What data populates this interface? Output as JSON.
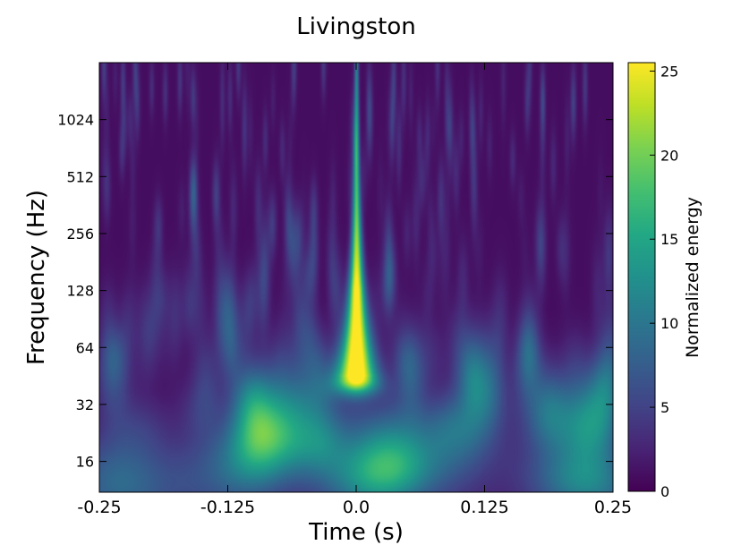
{
  "chart_data": {
    "type": "heatmap",
    "title": "Livingston",
    "xlabel": "Time (s)",
    "ylabel": "Frequency (Hz)",
    "xlim": [
      -0.25,
      0.25
    ],
    "ylim": [
      11,
      2048
    ],
    "yscale": "log2",
    "x_ticks": [
      -0.25,
      -0.125,
      0.0,
      0.125,
      0.25
    ],
    "x_tick_labels": [
      "-0.25",
      "-0.125",
      "0.0",
      "0.125",
      "0.25"
    ],
    "y_ticks": [
      16,
      32,
      64,
      128,
      256,
      512,
      1024
    ],
    "y_tick_labels": [
      "16",
      "32",
      "64",
      "128",
      "256",
      "512",
      "1024"
    ],
    "grid": false,
    "colormap": "viridis",
    "colorbar": {
      "label": "Normalized energy",
      "min": 0,
      "max": 25.5,
      "ticks": [
        0,
        5,
        10,
        15,
        20,
        25
      ],
      "tick_labels": [
        "0",
        "5",
        "10",
        "15",
        "20",
        "25"
      ]
    },
    "features": [
      {
        "kind": "chirp-track",
        "time_s": 0.0,
        "freq_range_hz": [
          35,
          2048
        ],
        "peak_energy": 25,
        "peak_freq_hz": [
          45,
          120
        ]
      }
    ]
  }
}
